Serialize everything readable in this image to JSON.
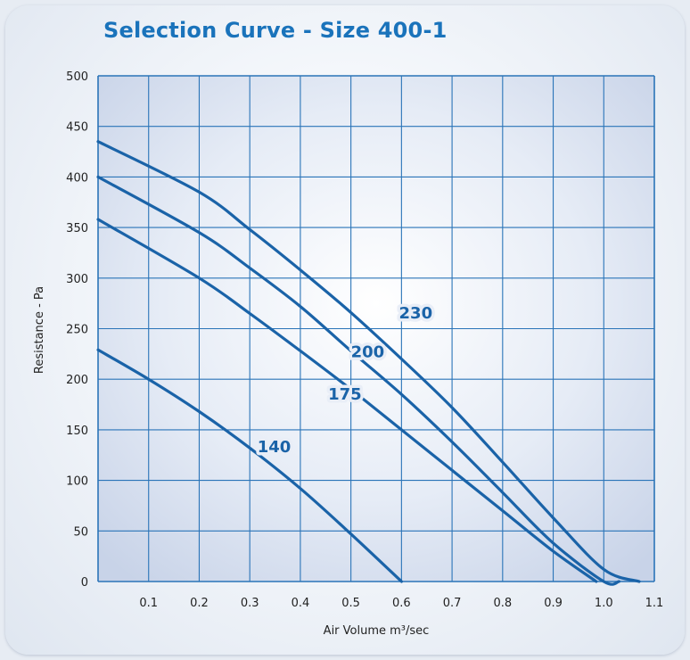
{
  "chart_data": {
    "type": "line",
    "title": "Selection Curve - Size 400-1",
    "xlabel": "Air Volume m³/sec",
    "ylabel": "Resistance - Pa",
    "xlim": [
      0,
      1.1
    ],
    "ylim": [
      0,
      500
    ],
    "xticks": [
      "0.1",
      "0.2",
      "0.3",
      "0.4",
      "0.5",
      "0.6",
      "0.7",
      "0.8",
      "0.9",
      "1.0",
      "1.1"
    ],
    "yticks": [
      "0",
      "50",
      "100",
      "150",
      "200",
      "250",
      "300",
      "350",
      "400",
      "450",
      "500"
    ],
    "grid": true,
    "series": [
      {
        "name": "230",
        "x": [
          0,
          0.2,
          0.3,
          0.4,
          0.5,
          0.6,
          0.7,
          0.8,
          0.9,
          1.0,
          1.07
        ],
        "y": [
          435,
          385,
          348,
          308,
          266,
          220,
          172,
          118,
          63,
          12,
          0
        ]
      },
      {
        "name": "200",
        "x": [
          0,
          0.2,
          0.3,
          0.4,
          0.5,
          0.6,
          0.7,
          0.8,
          0.9,
          1.0,
          1.03
        ],
        "y": [
          400,
          345,
          310,
          272,
          228,
          185,
          138,
          88,
          38,
          0,
          0
        ]
      },
      {
        "name": "175",
        "x": [
          0,
          0.2,
          0.3,
          0.4,
          0.5,
          0.6,
          0.7,
          0.8,
          0.9,
          0.985
        ],
        "y": [
          358,
          300,
          265,
          228,
          190,
          150,
          110,
          70,
          30,
          0
        ]
      },
      {
        "name": "140",
        "x": [
          0,
          0.1,
          0.2,
          0.3,
          0.4,
          0.5,
          0.6
        ],
        "y": [
          229,
          200,
          168,
          132,
          92,
          47,
          0
        ]
      }
    ],
    "labels": [
      {
        "text": "230",
        "x": 0.595,
        "y": 260
      },
      {
        "text": "200",
        "x": 0.5,
        "y": 222
      },
      {
        "text": "175",
        "x": 0.455,
        "y": 180
      },
      {
        "text": "140",
        "x": 0.315,
        "y": 128
      }
    ]
  }
}
